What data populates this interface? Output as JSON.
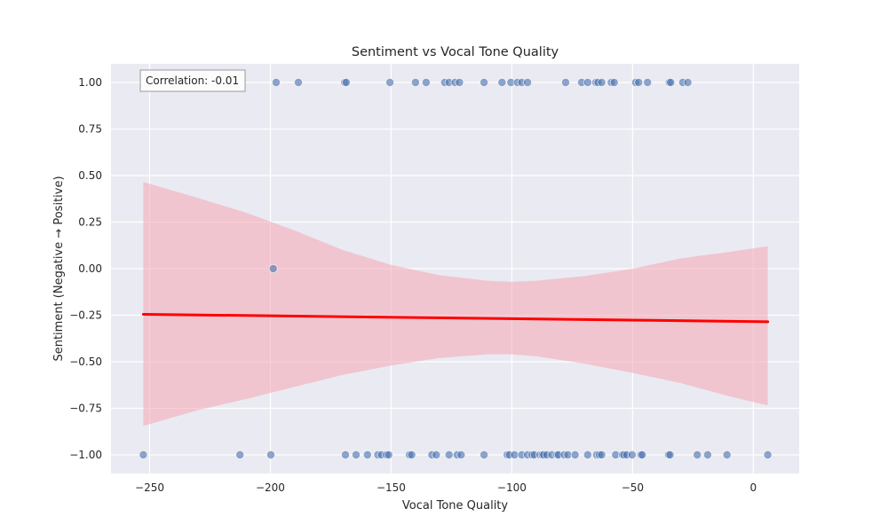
{
  "chart_data": {
    "type": "scatter",
    "title": "Sentiment vs Vocal Tone Quality",
    "xlabel": "Vocal Tone Quality",
    "ylabel": "Sentiment (Negative → Positive)",
    "xlim": [
      -266,
      19
    ],
    "ylim": [
      -1.1,
      1.1
    ],
    "x_ticks": [
      -250,
      -200,
      -150,
      -100,
      -50,
      0
    ],
    "y_ticks": [
      1.0,
      0.75,
      0.5,
      0.25,
      0.0,
      -0.25,
      -0.5,
      -0.75,
      -1.0
    ],
    "grid": true,
    "annotation": "Correlation: -0.01",
    "colors": {
      "background": "#eaeaf2",
      "grid": "#ffffff",
      "points": "#4c72b0",
      "regression_line": "#ff0000",
      "confidence_band": "#f4a6b2"
    },
    "points": [
      {
        "x": -197.6,
        "y": 1
      },
      {
        "x": -188.4,
        "y": 1
      },
      {
        "x": -169.2,
        "y": 1
      },
      {
        "x": -168.6,
        "y": 1
      },
      {
        "x": -150.5,
        "y": 1
      },
      {
        "x": -139.9,
        "y": 1
      },
      {
        "x": -135.5,
        "y": 1
      },
      {
        "x": -127.8,
        "y": 1
      },
      {
        "x": -126.0,
        "y": 1
      },
      {
        "x": -123.5,
        "y": 1
      },
      {
        "x": -121.7,
        "y": 1
      },
      {
        "x": -111.5,
        "y": 1
      },
      {
        "x": -104.1,
        "y": 1
      },
      {
        "x": -100.4,
        "y": 1
      },
      {
        "x": -97.7,
        "y": 1
      },
      {
        "x": -95.9,
        "y": 1
      },
      {
        "x": -93.5,
        "y": 1
      },
      {
        "x": -77.7,
        "y": 1
      },
      {
        "x": -71.1,
        "y": 1
      },
      {
        "x": -68.6,
        "y": 1
      },
      {
        "x": -65.2,
        "y": 1
      },
      {
        "x": -64.3,
        "y": 1
      },
      {
        "x": -62.8,
        "y": 1
      },
      {
        "x": -58.8,
        "y": 1
      },
      {
        "x": -57.6,
        "y": 1
      },
      {
        "x": -48.7,
        "y": 1
      },
      {
        "x": -47.5,
        "y": 1
      },
      {
        "x": -43.8,
        "y": 1
      },
      {
        "x": -34.8,
        "y": 1
      },
      {
        "x": -34.2,
        "y": 1
      },
      {
        "x": -29.2,
        "y": 1
      },
      {
        "x": -27.1,
        "y": 1
      },
      {
        "x": -198.8,
        "y": 0
      },
      {
        "x": -252.6,
        "y": -1
      },
      {
        "x": -212.6,
        "y": -1
      },
      {
        "x": -199.8,
        "y": -1
      },
      {
        "x": -168.9,
        "y": -1
      },
      {
        "x": -164.5,
        "y": -1
      },
      {
        "x": -159.8,
        "y": -1
      },
      {
        "x": -155.5,
        "y": -1
      },
      {
        "x": -154.0,
        "y": -1
      },
      {
        "x": -151.9,
        "y": -1
      },
      {
        "x": -151.0,
        "y": -1
      },
      {
        "x": -142.4,
        "y": -1
      },
      {
        "x": -141.5,
        "y": -1
      },
      {
        "x": -133.1,
        "y": -1
      },
      {
        "x": -131.3,
        "y": -1
      },
      {
        "x": -126.0,
        "y": -1
      },
      {
        "x": -122.6,
        "y": -1
      },
      {
        "x": -121.0,
        "y": -1
      },
      {
        "x": -111.5,
        "y": -1
      },
      {
        "x": -101.9,
        "y": -1
      },
      {
        "x": -101.0,
        "y": -1
      },
      {
        "x": -98.9,
        "y": -1
      },
      {
        "x": -95.9,
        "y": -1
      },
      {
        "x": -93.5,
        "y": -1
      },
      {
        "x": -91.6,
        "y": -1
      },
      {
        "x": -90.7,
        "y": -1
      },
      {
        "x": -88.3,
        "y": -1
      },
      {
        "x": -87.4,
        "y": -1
      },
      {
        "x": -86.8,
        "y": -1
      },
      {
        "x": -85.5,
        "y": -1
      },
      {
        "x": -83.4,
        "y": -1
      },
      {
        "x": -81.3,
        "y": -1
      },
      {
        "x": -80.7,
        "y": -1
      },
      {
        "x": -78.3,
        "y": -1
      },
      {
        "x": -76.8,
        "y": -1
      },
      {
        "x": -73.8,
        "y": -1
      },
      {
        "x": -68.6,
        "y": -1
      },
      {
        "x": -64.9,
        "y": -1
      },
      {
        "x": -63.7,
        "y": -1
      },
      {
        "x": -62.8,
        "y": -1
      },
      {
        "x": -57.0,
        "y": -1
      },
      {
        "x": -54.2,
        "y": -1
      },
      {
        "x": -53.6,
        "y": -1
      },
      {
        "x": -52.4,
        "y": -1
      },
      {
        "x": -50.2,
        "y": -1
      },
      {
        "x": -46.6,
        "y": -1
      },
      {
        "x": -46.0,
        "y": -1
      },
      {
        "x": -35.1,
        "y": -1
      },
      {
        "x": -34.5,
        "y": -1
      },
      {
        "x": -23.2,
        "y": -1
      },
      {
        "x": -18.9,
        "y": -1
      },
      {
        "x": -10.9,
        "y": -1
      },
      {
        "x": 6.0,
        "y": -1
      }
    ],
    "regression": {
      "x_range": [
        -252.6,
        6.0
      ],
      "y_range": [
        -0.245,
        -0.285
      ]
    },
    "confidence_band": {
      "x": [
        -252.6,
        -230,
        -210,
        -190,
        -170,
        -150,
        -130,
        -110,
        -100,
        -90,
        -70,
        -50,
        -30,
        -10,
        6
      ],
      "upper": [
        0.465,
        0.38,
        0.3,
        0.205,
        0.1,
        0.02,
        -0.035,
        -0.065,
        -0.07,
        -0.065,
        -0.04,
        0.0,
        0.055,
        0.09,
        0.12
      ],
      "lower": [
        -0.845,
        -0.76,
        -0.7,
        -0.635,
        -0.57,
        -0.52,
        -0.48,
        -0.46,
        -0.46,
        -0.47,
        -0.51,
        -0.56,
        -0.615,
        -0.685,
        -0.735
      ]
    }
  }
}
